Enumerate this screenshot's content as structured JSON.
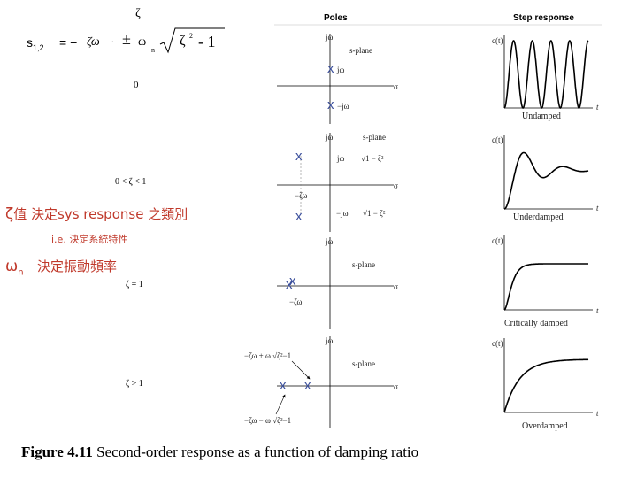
{
  "formula": {
    "zeta_top": "ζ",
    "lhs": "s",
    "lhs_sub": "1,2",
    "equals_minus": "= −",
    "zeta_omega": "ζω",
    "dot": ".",
    "plus_minus": "±",
    "omega": "ω",
    "n_sub": "n",
    "zeta_sq": "ζ",
    "sq": "2",
    "minus_one": "- 1",
    "zero": "0"
  },
  "left": {
    "range_underdamped": "0  <  ζ  <  1",
    "zeta_line_symbol": "ζ",
    "zeta_line_text": "值 決定sys response 之類別",
    "ie_text": "i.e. 決定系統特性",
    "omega_symbol": "ω",
    "omega_sub": "n",
    "omega_text": "決定振動頻率",
    "critical": "ζ  =  1",
    "over": "ζ  >  1"
  },
  "headers": {
    "poles": "Poles",
    "step": "Step response"
  },
  "poles": {
    "jw": "jω",
    "splane": "s-plane",
    "sigma": "σ",
    "undamped_upper": "jω",
    "undamped_lower": "−jω",
    "under_upper": "jω",
    "under_upper_root": "√1 − ζ²",
    "under_neg": "−ζω",
    "under_lower": "−jω",
    "under_lower_root": "√1 − ζ²",
    "crit_label": "−ζω",
    "over_upper": "−ζω  + ω  √ζ²−1",
    "over_lower": "−ζω  − ω  √ζ²−1",
    "n": "n",
    "mark": "x"
  },
  "steps": {
    "ct": "c(t)",
    "t": "t",
    "undamped": "Undamped",
    "underdamped": "Underdamped",
    "critically": "Critically damped",
    "overdamped": "Overdamped"
  },
  "caption": {
    "bold": "Figure 4.11",
    "rest": " Second-order response as a function of damping ratio"
  },
  "colors": {
    "red_text": "#c0392b",
    "step_curve": "#000000",
    "pole_mark": "#3b4f9c"
  }
}
